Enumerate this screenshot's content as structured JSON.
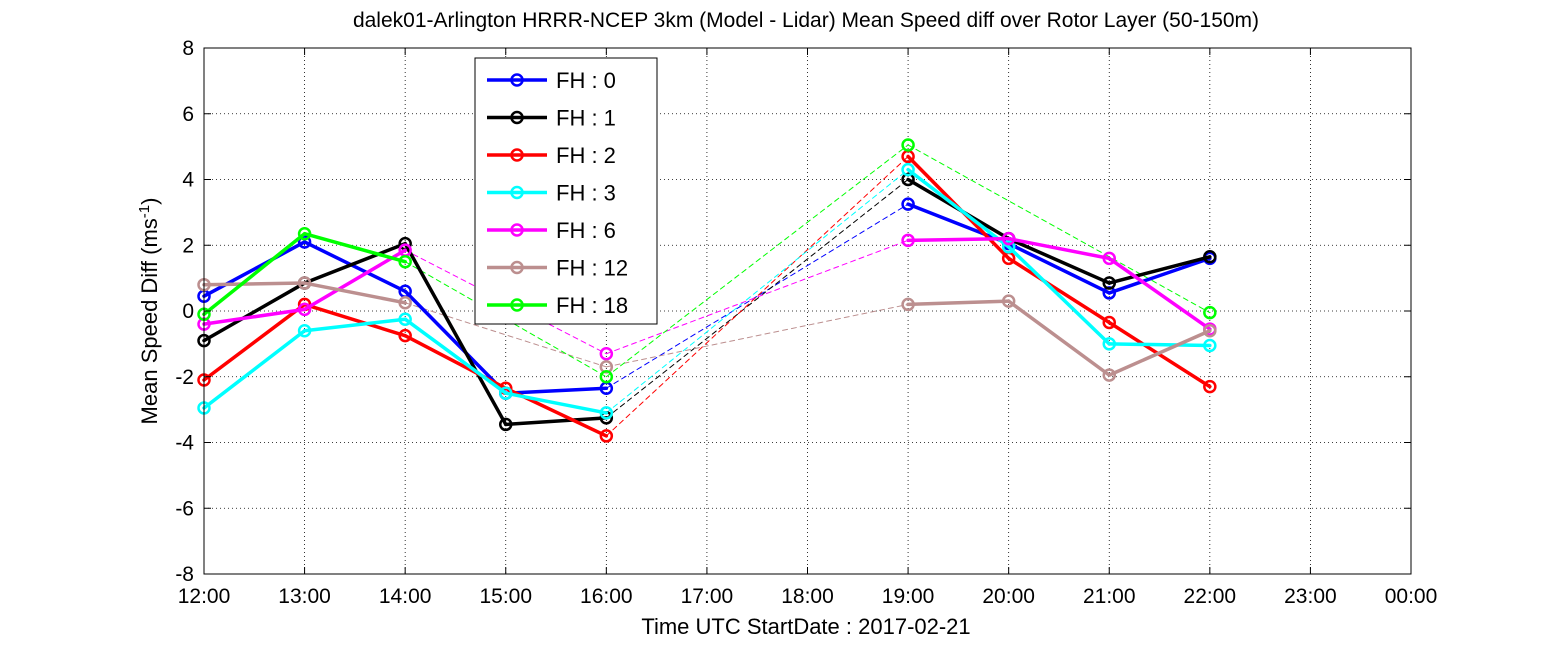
{
  "chart_data": {
    "type": "line",
    "title": "dalek01-Arlington HRRR-NCEP 3km (Model - Lidar) Mean Speed diff over Rotor Layer (50-150m)",
    "xlabel": "Time UTC    StartDate : 2017-02-21",
    "ylabel_main": "Mean Speed Diff (ms",
    "ylabel_sup": "-1",
    "ylabel_tail": ")",
    "x_ticks": [
      "12:00",
      "13:00",
      "14:00",
      "15:00",
      "16:00",
      "17:00",
      "18:00",
      "19:00",
      "20:00",
      "21:00",
      "22:00",
      "23:00",
      "00:00"
    ],
    "y_ticks": [
      "-8",
      "-6",
      "-4",
      "-2",
      "0",
      "2",
      "4",
      "6",
      "8"
    ],
    "xlim": [
      0,
      12
    ],
    "ylim": [
      -8,
      8
    ],
    "grid": true,
    "legend_position": "upper-left-inside",
    "series": [
      {
        "name": "FH : 0",
        "color": "#0000ff",
        "values": [
          0.45,
          2.1,
          0.6,
          -2.5,
          -2.35,
          null,
          null,
          3.25,
          2.05,
          0.55,
          1.6
        ]
      },
      {
        "name": "FH : 1",
        "color": "#000000",
        "values": [
          -0.9,
          0.85,
          2.05,
          -3.45,
          -3.25,
          null,
          null,
          4.0,
          2.2,
          0.85,
          1.65
        ]
      },
      {
        "name": "FH : 2",
        "color": "#ff0000",
        "values": [
          -2.1,
          0.2,
          -0.75,
          -2.35,
          -3.8,
          null,
          null,
          4.7,
          1.6,
          -0.35,
          -2.3
        ]
      },
      {
        "name": "FH : 3",
        "color": "#00ffff",
        "values": [
          -2.95,
          -0.6,
          -0.25,
          -2.5,
          -3.1,
          null,
          null,
          4.3,
          1.95,
          -1.0,
          -1.05
        ]
      },
      {
        "name": "FH : 6",
        "color": "#ff00ff",
        "values": [
          -0.4,
          0.05,
          1.85,
          null,
          -1.3,
          null,
          null,
          2.15,
          2.2,
          1.6,
          -0.55
        ]
      },
      {
        "name": "FH : 12",
        "color": "#bc8f8f",
        "values": [
          0.8,
          0.85,
          0.25,
          null,
          -1.7,
          null,
          null,
          0.2,
          0.3,
          -1.95,
          -0.6
        ]
      },
      {
        "name": "FH : 18",
        "color": "#00ff00",
        "values": [
          -0.1,
          2.35,
          1.5,
          null,
          -2.0,
          null,
          null,
          5.05,
          null,
          null,
          -0.05
        ]
      }
    ]
  }
}
